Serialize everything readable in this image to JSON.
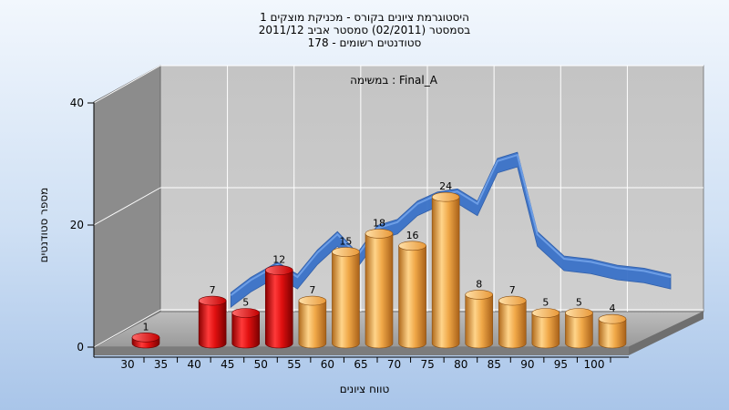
{
  "titles": {
    "line1": "היסטוגרמת ציונים בקורס - מכניקת מוצקים 1",
    "line2": "בסמסטר  (02/2011)  סמסטר אביב 2011/12",
    "line3": "סטודנטים רשומים - 178"
  },
  "chart_data": {
    "type": "bar",
    "title": "היסטוגרמת ציונים בקורס - מכניקת מוצקים 1",
    "subtitle": "Final_A : במשימה",
    "xlabel": "טווח ציונים",
    "ylabel": "מספר סטודנטים",
    "ylim": [
      0,
      40
    ],
    "yticks": [
      0,
      20,
      40
    ],
    "xticks": [
      30,
      35,
      40,
      45,
      50,
      55,
      60,
      65,
      70,
      75,
      80,
      85,
      90,
      95,
      100
    ],
    "categories": [
      30,
      40,
      45,
      50,
      55,
      60,
      65,
      70,
      75,
      80,
      85,
      90,
      95,
      100
    ],
    "values": [
      1,
      7,
      5,
      12,
      7,
      15,
      18,
      16,
      24,
      8,
      7,
      5,
      5,
      4
    ],
    "bar_colors": [
      "#e81010",
      "#e81010",
      "#e81010",
      "#e81010",
      "#f0a848",
      "#f0a848",
      "#f0a848",
      "#f0a848",
      "#f0a848",
      "#f0a848",
      "#f0a848",
      "#f0a848",
      "#f0a848",
      "#f0a848"
    ],
    "trend_x": [
      40,
      43,
      47,
      50,
      53,
      56,
      59,
      62,
      65,
      68,
      71,
      74,
      77,
      80,
      83,
      86,
      90,
      94,
      98,
      102,
      106
    ],
    "trend_y": [
      4,
      6.5,
      9,
      7,
      11,
      14,
      10.5,
      15,
      16,
      19,
      20.5,
      21,
      19,
      26,
      27,
      14,
      10,
      9.5,
      8.5,
      8,
      7
    ],
    "trend_color": "#3a72c8",
    "grid": true
  }
}
